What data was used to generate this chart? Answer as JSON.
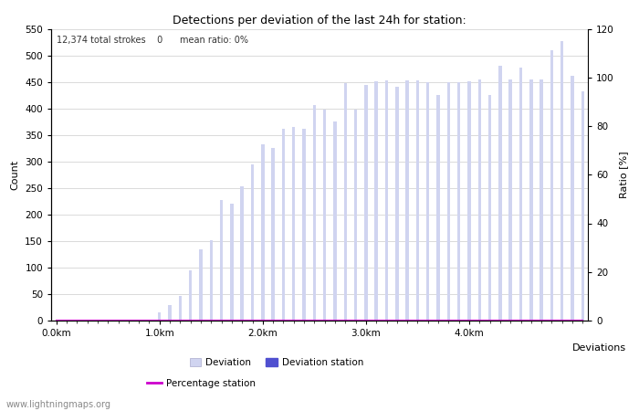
{
  "title": "Detections per deviation of the last 24h for station:",
  "subtitle": "12,374 total strokes    0      mean ratio: 0%",
  "xlabel": "Deviations",
  "ylabel_left": "Count",
  "ylabel_right": "Ratio [%]",
  "ylim_left": [
    0,
    550
  ],
  "ylim_right": [
    0,
    120
  ],
  "yticks_left": [
    0,
    50,
    100,
    150,
    200,
    250,
    300,
    350,
    400,
    450,
    500,
    550
  ],
  "yticks_right": [
    0,
    20,
    40,
    60,
    80,
    100,
    120
  ],
  "xtick_labels": [
    "0.0km",
    "1.0km",
    "2.0km",
    "3.0km",
    "4.0km"
  ],
  "xtick_positions": [
    0,
    10,
    20,
    30,
    40
  ],
  "bar_deviation": [
    0,
    0,
    0,
    0,
    0,
    0,
    0,
    0,
    2,
    0,
    15,
    30,
    47,
    95,
    135,
    152,
    228,
    221,
    253,
    295,
    332,
    326,
    362,
    365,
    362,
    407,
    397,
    375,
    447,
    397,
    444,
    451,
    452,
    440,
    452,
    452,
    449,
    425,
    450,
    450,
    451,
    455,
    426,
    481,
    455,
    477,
    455,
    454,
    510,
    527,
    462,
    432
  ],
  "bar_station": [
    0,
    0,
    0,
    0,
    0,
    0,
    0,
    0,
    0,
    0,
    0,
    0,
    0,
    0,
    0,
    0,
    0,
    0,
    0,
    0,
    0,
    0,
    0,
    0,
    0,
    0,
    0,
    0,
    0,
    0,
    0,
    0,
    0,
    0,
    0,
    0,
    0,
    0,
    0,
    0,
    0,
    0,
    0,
    0,
    0,
    0,
    0,
    0,
    0,
    0,
    0,
    0
  ],
  "percentage_station": [
    0,
    0,
    0,
    0,
    0,
    0,
    0,
    0,
    0,
    0,
    0,
    0,
    0,
    0,
    0,
    0,
    0,
    0,
    0,
    0,
    0,
    0,
    0,
    0,
    0,
    0,
    0,
    0,
    0,
    0,
    0,
    0,
    0,
    0,
    0,
    0,
    0,
    0,
    0,
    0,
    0,
    0,
    0,
    0,
    0,
    0,
    0,
    0,
    0,
    0,
    0,
    0
  ],
  "bar_color_deviation": "#d0d4f0",
  "bar_color_station": "#5050d0",
  "line_color_percentage": "#cc00cc",
  "background_color": "#ffffff",
  "grid_color": "#cccccc",
  "watermark": "www.lightningmaps.org",
  "n_bars": 52,
  "bar_width": 0.3
}
